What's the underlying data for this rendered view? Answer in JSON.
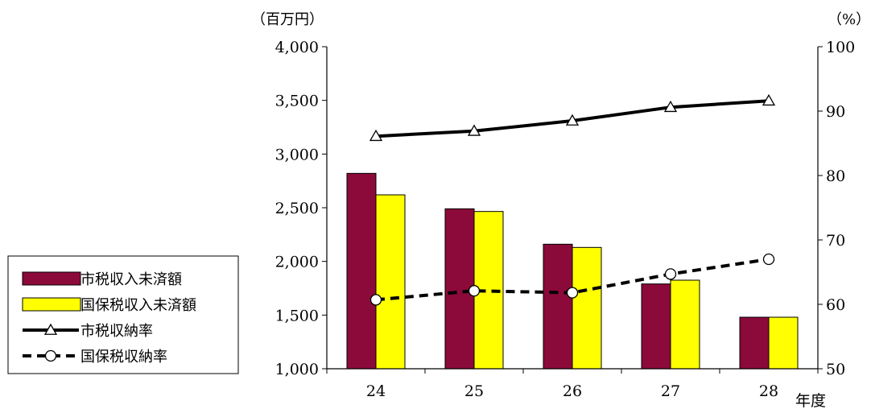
{
  "chart_data": {
    "type": "bar",
    "categories": [
      "24",
      "25",
      "26",
      "27",
      "28"
    ],
    "xlabel": "年度",
    "y_left": {
      "unit_label": "（百万円）",
      "range": [
        1000,
        4000
      ],
      "ticks": [
        "1,000",
        "1,500",
        "2,000",
        "2,500",
        "3,000",
        "3,500",
        "4,000"
      ]
    },
    "y_right": {
      "unit_label": "（%）",
      "range": [
        50,
        100
      ],
      "ticks": [
        "50",
        "60",
        "70",
        "80",
        "90",
        "100"
      ]
    },
    "series": [
      {
        "name": "市税収入未済額",
        "type": "bar",
        "axis": "left",
        "color": "#8B0A3A",
        "values": [
          2820,
          2490,
          2160,
          1790,
          1480
        ]
      },
      {
        "name": "国保税収入未済額",
        "type": "bar",
        "axis": "left",
        "color": "#FFFF00",
        "values": [
          2620,
          2465,
          2130,
          1825,
          1480
        ]
      },
      {
        "name": "市税収納率",
        "type": "line",
        "axis": "right",
        "color": "#000000",
        "marker": "triangle",
        "dash": "solid",
        "values": [
          86.1,
          86.9,
          88.5,
          90.6,
          91.6
        ]
      },
      {
        "name": "国保税収納率",
        "type": "line",
        "axis": "right",
        "color": "#000000",
        "marker": "circle",
        "dash": "dashed",
        "values": [
          60.7,
          62.1,
          61.8,
          64.7,
          67.0
        ]
      }
    ],
    "legend_position": "left",
    "grid": false
  }
}
